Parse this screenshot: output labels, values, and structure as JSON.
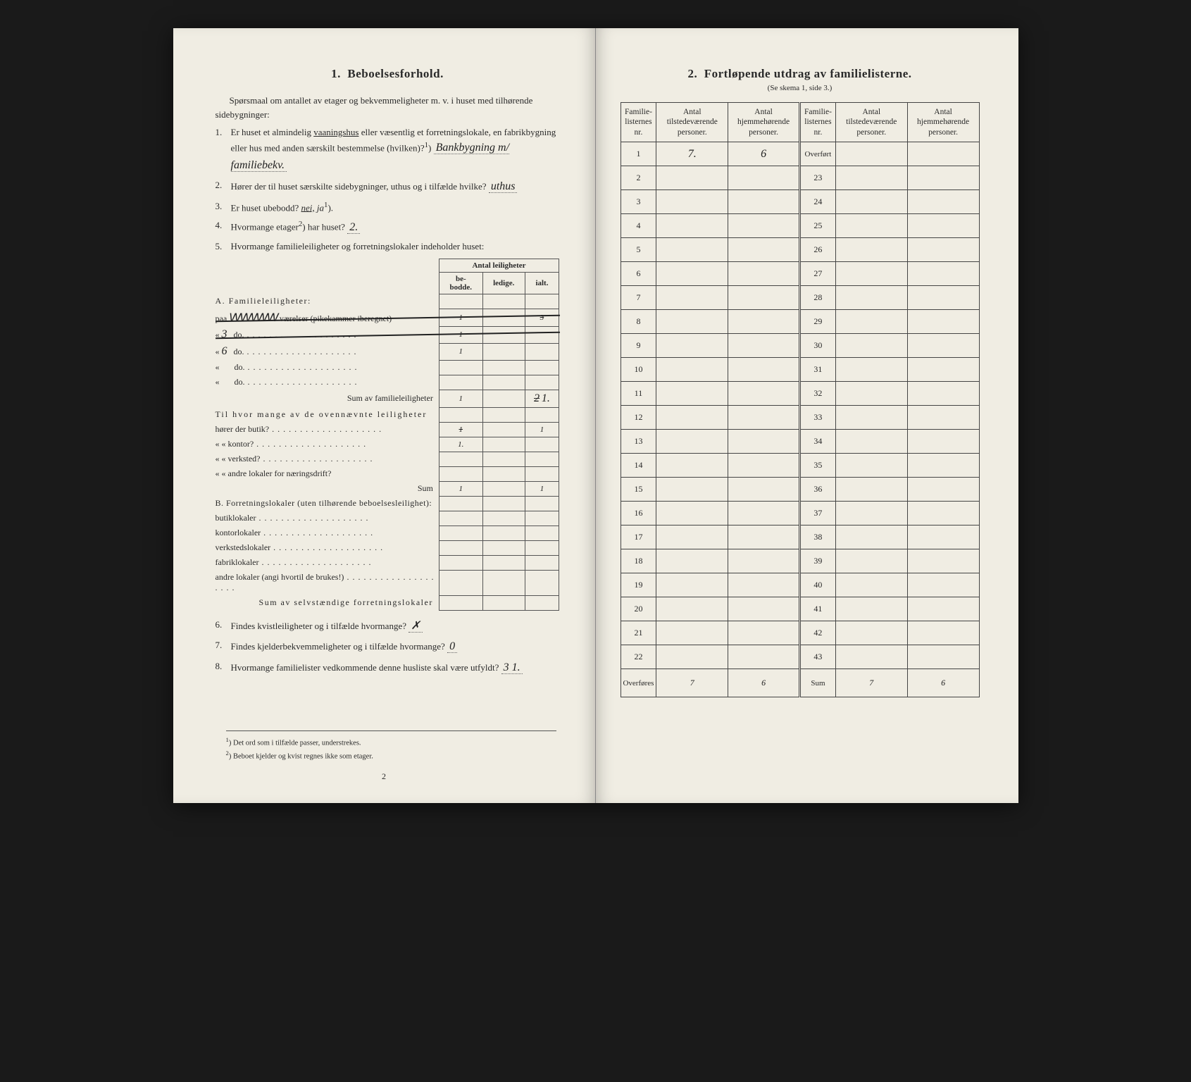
{
  "left": {
    "heading_num": "1.",
    "heading": "Beboelsesforhold.",
    "intro": "Spørsmaal om antallet av etager og bekvemmeligheter m. v. i huset med tilhørende sidebygninger:",
    "q1_a": "Er huset et almindelig ",
    "q1_vaan": "vaaningshus",
    "q1_b": " eller væsentlig et forretningslokale, en fabrikbygning eller hus med anden særskilt bestemmelse (hvilken)?",
    "q1_sup": "1",
    "q1_answer": "Bankbygning m/ familiebekv.",
    "q2_a": "Hører der til huset særskilte sidebygninger, uthus og i tilfælde hvilke?",
    "q2_answer": "uthus",
    "q3_a": "Er huset ubebodd?",
    "q3_nei": "nei,",
    "q3_ja": "ja",
    "q3_sup": "1",
    "q4_a": "Hvormange etager",
    "q4_sup": "2",
    "q4_b": " har huset?",
    "q4_answer": "2.",
    "q5": "Hvormange familieleiligheter og forretningslokaler indeholder huset:",
    "antal_header": "Antal leiligheter",
    "col_be": "be-\nbodde.",
    "col_ledige": "ledige.",
    "col_ialt": "ialt.",
    "sectionA": "A. Familieleiligheter:",
    "rowA_paa": "paa",
    "rowA_vaer": "værelser (pikekammer iberegnet)",
    "rowA_do": "do.",
    "rowA_6": "6",
    "rowA_3": "3",
    "cell_A1_be": "1",
    "cell_A1_ialt_struck": "3",
    "cell_A6_be": "1",
    "sumA_label": "Sum av familieleiligheter",
    "sumA_be": "1",
    "sumA_ialt_struck": "2",
    "sumA_ialt": "1.",
    "ovenn_label": "Til hvor mange av de ovennævnte leiligheter",
    "butik": "hører der butik?",
    "butik_struck": "1",
    "butik_ialt": "1",
    "kontor": "« « kontor?",
    "kontor_val": "1.",
    "verksted": "« « verksted?",
    "andre_lok": "« « andre lokaler for næringsdrift?",
    "sum_label": "Sum",
    "sum_be": "1",
    "sum_ialt": "1",
    "sectionB": "B. Forretningslokaler (uten tilhørende beboelsesleilighet):",
    "b_butik": "butiklokaler",
    "b_kontor": "kontorlokaler",
    "b_verksted": "verkstedslokaler",
    "b_fabrik": "fabriklokaler",
    "b_andre": "andre lokaler (angi hvortil de brukes!)",
    "sumB": "Sum av selvstændige forretningslokaler",
    "q6": "Findes kvistleiligheter og i tilfælde hvormange?",
    "q6_answer": "✗",
    "q7": "Findes kjelderbekvemmeligheter og i tilfælde hvormange?",
    "q7_answer": "0",
    "q8": "Hvormange familielister vedkommende denne husliste skal være utfyldt?",
    "q8_answer": "3  1.",
    "fn1": "Det ord som i tilfælde passer, understrekes.",
    "fn2": "Beboet kjelder og kvist regnes ikke som etager.",
    "pagenum": "2"
  },
  "right": {
    "heading_num": "2.",
    "heading": "Fortløpende utdrag av familielisterne.",
    "sub": "(Se skema 1, side 3.)",
    "col1": "Familie-\nlisternes\nnr.",
    "col2": "Antal\ntilstedeværende\npersoner.",
    "col3": "Antal\nhjemmehørende\npersoner.",
    "overfort": "Overført",
    "overfores": "Overføres",
    "sum": "Sum",
    "row1_tilst": "7.",
    "row1_hjem": "6",
    "overfores_tilst": "7",
    "overfores_hjem": "6",
    "sum_tilst": "7",
    "sum_hjem": "6",
    "left_nums": [
      "1",
      "2",
      "3",
      "4",
      "5",
      "6",
      "7",
      "8",
      "9",
      "10",
      "11",
      "12",
      "13",
      "14",
      "15",
      "16",
      "17",
      "18",
      "19",
      "20",
      "21",
      "22"
    ],
    "right_nums": [
      "23",
      "24",
      "25",
      "26",
      "27",
      "28",
      "29",
      "30",
      "31",
      "32",
      "33",
      "34",
      "35",
      "36",
      "37",
      "38",
      "39",
      "40",
      "41",
      "42",
      "43"
    ]
  }
}
